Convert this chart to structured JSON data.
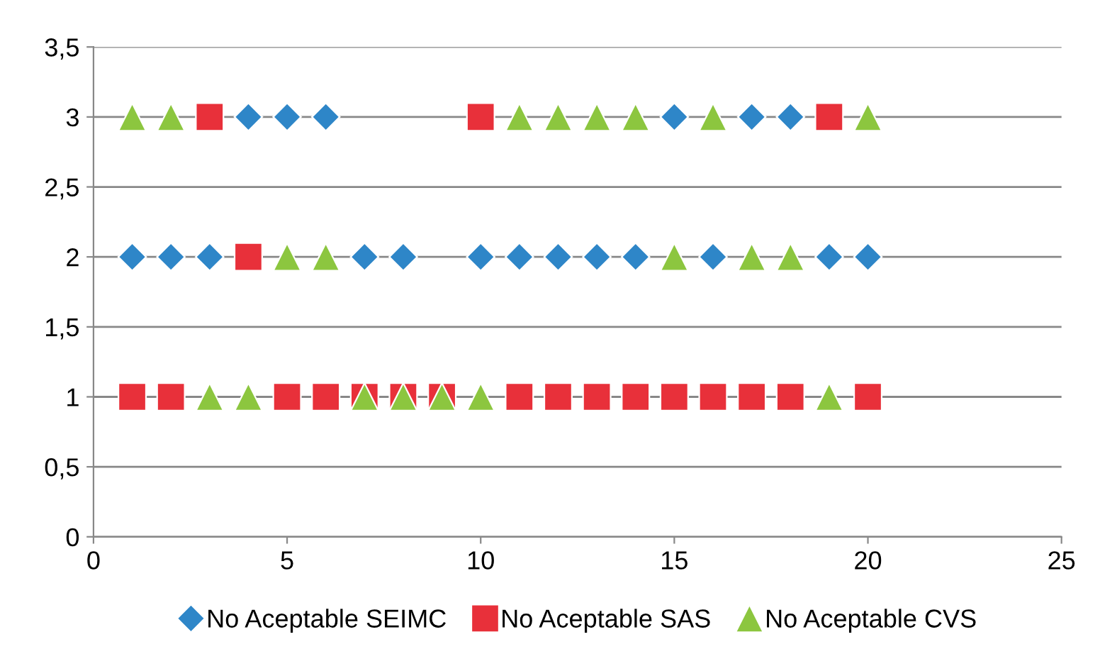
{
  "chart_data": {
    "type": "scatter",
    "x": [
      1,
      2,
      3,
      4,
      5,
      6,
      7,
      8,
      9,
      10,
      11,
      12,
      13,
      14,
      15,
      16,
      17,
      18,
      19,
      20
    ],
    "series": [
      {
        "name": "No Aceptable SEIMC",
        "color": "#2e86c8",
        "marker": "diamond",
        "values": [
          2,
          2,
          2,
          3,
          3,
          3,
          2,
          2,
          null,
          2,
          2,
          2,
          2,
          2,
          3,
          2,
          3,
          3,
          2,
          2
        ]
      },
      {
        "name": "No Aceptable SAS",
        "color": "#e8303a",
        "marker": "square",
        "values": [
          1,
          1,
          3,
          2,
          1,
          1,
          1,
          1,
          1,
          3,
          1,
          1,
          1,
          1,
          1,
          1,
          1,
          1,
          3,
          1
        ]
      },
      {
        "name": "No Aceptable CVS",
        "color": "#8cc63f",
        "marker": "triangle",
        "values": [
          3,
          3,
          1,
          1,
          2,
          2,
          1,
          1,
          1,
          1,
          3,
          3,
          3,
          3,
          2,
          3,
          2,
          2,
          1,
          3
        ]
      }
    ],
    "xlim": [
      0,
      25
    ],
    "xticks": [
      0,
      5,
      10,
      15,
      20,
      25
    ],
    "ylim": [
      0,
      3.5
    ],
    "yticks": [
      0,
      {
        "value": 0.5,
        "label": "0,5"
      },
      1,
      {
        "value": 1.5,
        "label": "1,5"
      },
      2,
      {
        "value": 2.5,
        "label": "2,5"
      },
      3,
      {
        "value": 3.5,
        "label": "3,5"
      }
    ],
    "grid": "y",
    "legend": "bottom"
  }
}
